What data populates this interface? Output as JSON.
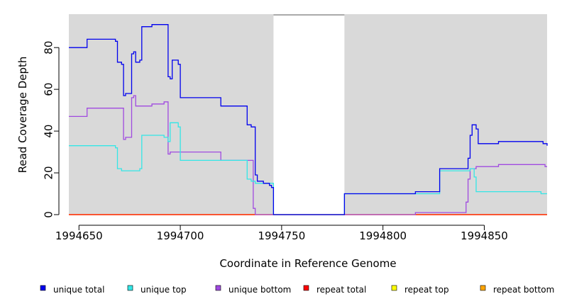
{
  "chart_data": {
    "type": "line",
    "xlabel": "Coordinate in Reference Genome",
    "ylabel": "Read Coverage Depth",
    "xlim": [
      1994645,
      1994881
    ],
    "ylim": [
      0,
      96
    ],
    "x_ticks": [
      1994650,
      1994700,
      1994750,
      1994800,
      1994850
    ],
    "y_ticks": [
      0,
      20,
      40,
      60,
      80
    ],
    "gap_region": [
      1994746,
      1994781
    ],
    "colors": {
      "background": "#d9d9d9",
      "gap": "#ffffff"
    },
    "legend_position": "bottom",
    "series": [
      {
        "name": "unique total",
        "color": "#0000ee",
        "step": true,
        "points": [
          [
            1994645,
            80
          ],
          [
            1994654,
            84
          ],
          [
            1994668,
            83
          ],
          [
            1994669,
            73
          ],
          [
            1994671,
            72
          ],
          [
            1994672,
            57
          ],
          [
            1994673,
            58
          ],
          [
            1994676,
            77
          ],
          [
            1994677,
            78
          ],
          [
            1994678,
            73
          ],
          [
            1994680,
            74
          ],
          [
            1994681,
            90
          ],
          [
            1994686,
            91
          ],
          [
            1994694,
            66
          ],
          [
            1994695,
            65
          ],
          [
            1994696,
            74
          ],
          [
            1994699,
            72
          ],
          [
            1994700,
            56
          ],
          [
            1994720,
            52
          ],
          [
            1994733,
            43
          ],
          [
            1994735,
            42
          ],
          [
            1994737,
            19
          ],
          [
            1994738,
            16
          ],
          [
            1994741,
            15
          ],
          [
            1994744,
            14
          ],
          [
            1994745,
            13
          ],
          [
            1994746,
            0
          ],
          [
            1994781,
            10
          ],
          [
            1994816,
            11
          ],
          [
            1994828,
            22
          ],
          [
            1994842,
            27
          ],
          [
            1994843,
            38
          ],
          [
            1994844,
            43
          ],
          [
            1994846,
            41
          ],
          [
            1994847,
            34
          ],
          [
            1994857,
            35
          ],
          [
            1994879,
            34
          ],
          [
            1994881,
            33
          ]
        ]
      },
      {
        "name": "unique top",
        "color": "#33e6e6",
        "step": true,
        "points": [
          [
            1994645,
            33
          ],
          [
            1994668,
            32
          ],
          [
            1994669,
            22
          ],
          [
            1994671,
            21
          ],
          [
            1994680,
            22
          ],
          [
            1994681,
            38
          ],
          [
            1994692,
            37
          ],
          [
            1994694,
            35
          ],
          [
            1994695,
            44
          ],
          [
            1994699,
            42
          ],
          [
            1994700,
            26
          ],
          [
            1994733,
            17
          ],
          [
            1994735,
            16
          ],
          [
            1994737,
            15
          ],
          [
            1994746,
            0
          ],
          [
            1994781,
            10
          ],
          [
            1994828,
            21
          ],
          [
            1994843,
            22
          ],
          [
            1994845,
            18
          ],
          [
            1994846,
            11
          ],
          [
            1994878,
            10
          ],
          [
            1994881,
            10
          ]
        ]
      },
      {
        "name": "unique bottom",
        "color": "#a04ae0",
        "step": true,
        "points": [
          [
            1994645,
            47
          ],
          [
            1994654,
            51
          ],
          [
            1994672,
            36
          ],
          [
            1994673,
            37
          ],
          [
            1994676,
            56
          ],
          [
            1994677,
            57
          ],
          [
            1994678,
            52
          ],
          [
            1994686,
            53
          ],
          [
            1994692,
            54
          ],
          [
            1994694,
            29
          ],
          [
            1994695,
            30
          ],
          [
            1994720,
            26
          ],
          [
            1994736,
            3
          ],
          [
            1994737,
            0
          ],
          [
            1994816,
            1
          ],
          [
            1994841,
            6
          ],
          [
            1994842,
            17
          ],
          [
            1994843,
            22
          ],
          [
            1994846,
            23
          ],
          [
            1994857,
            24
          ],
          [
            1994880,
            23
          ],
          [
            1994881,
            23
          ]
        ]
      },
      {
        "name": "repeat total",
        "color": "#ff0000",
        "step": true,
        "points": [
          [
            1994645,
            0
          ],
          [
            1994881,
            0
          ]
        ]
      },
      {
        "name": "repeat top",
        "color": "#ffff00",
        "step": true,
        "points": [
          [
            1994645,
            0
          ],
          [
            1994881,
            0
          ]
        ]
      },
      {
        "name": "repeat bottom",
        "color": "#ffa500",
        "step": true,
        "points": [
          [
            1994645,
            0
          ],
          [
            1994881,
            0
          ]
        ]
      }
    ]
  }
}
